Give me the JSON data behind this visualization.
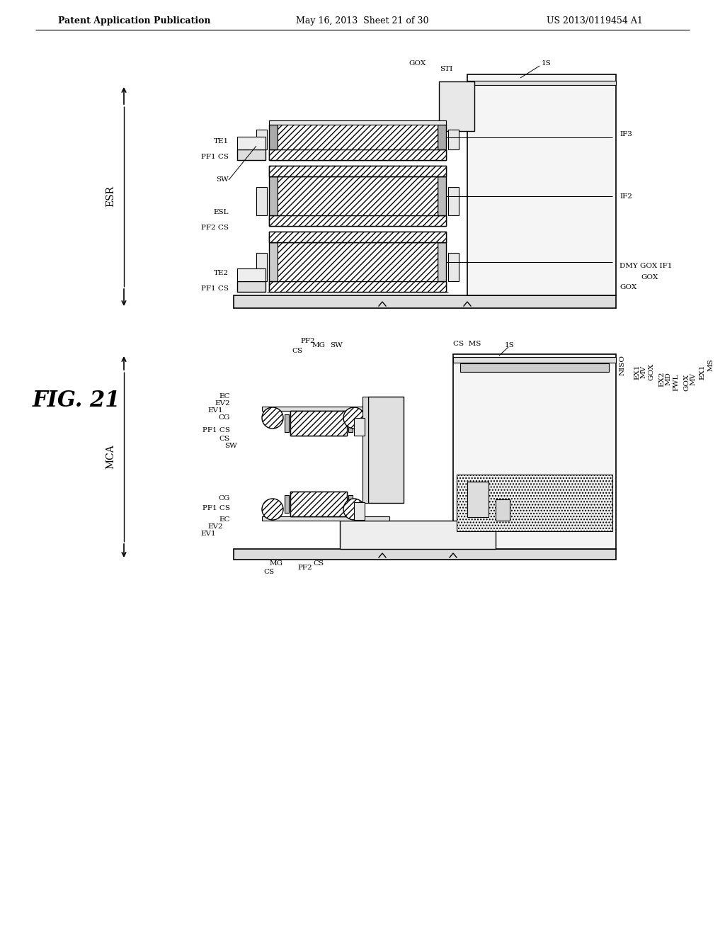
{
  "title_left": "Patent Application Publication",
  "title_mid": "May 16, 2013  Sheet 21 of 30",
  "title_right": "US 2013/0119454 A1",
  "fig_label": "FIG. 21",
  "esr_label": "ESR",
  "mca_label": "MCA",
  "top_labels_left": [
    "TE1",
    "PF1 CS",
    "SW",
    "ESL",
    "PF2 CS",
    "TE2",
    "PF1 CS"
  ],
  "top_labels_right": [
    "GOX",
    "STI",
    "1S",
    "IF3",
    "IF2",
    "DMY GOX IF1",
    "GOX"
  ],
  "bot_labels_left": [
    "MG",
    "CS PF2",
    "SW",
    "CS",
    "EC",
    "EV1",
    "EV2",
    "CG",
    "PF1 CS",
    "CS",
    "SW",
    "CG",
    "PF1 CS",
    "EC",
    "EV2",
    "EV1",
    "CS",
    "MG",
    "PF2"
  ],
  "bot_labels_right": [
    "MS",
    "CS",
    "1S",
    "NISO",
    "EX1",
    "MV",
    "GOX",
    "EX2",
    "MD",
    "PWL",
    "GOX",
    "MV",
    "EX1",
    "MS"
  ]
}
